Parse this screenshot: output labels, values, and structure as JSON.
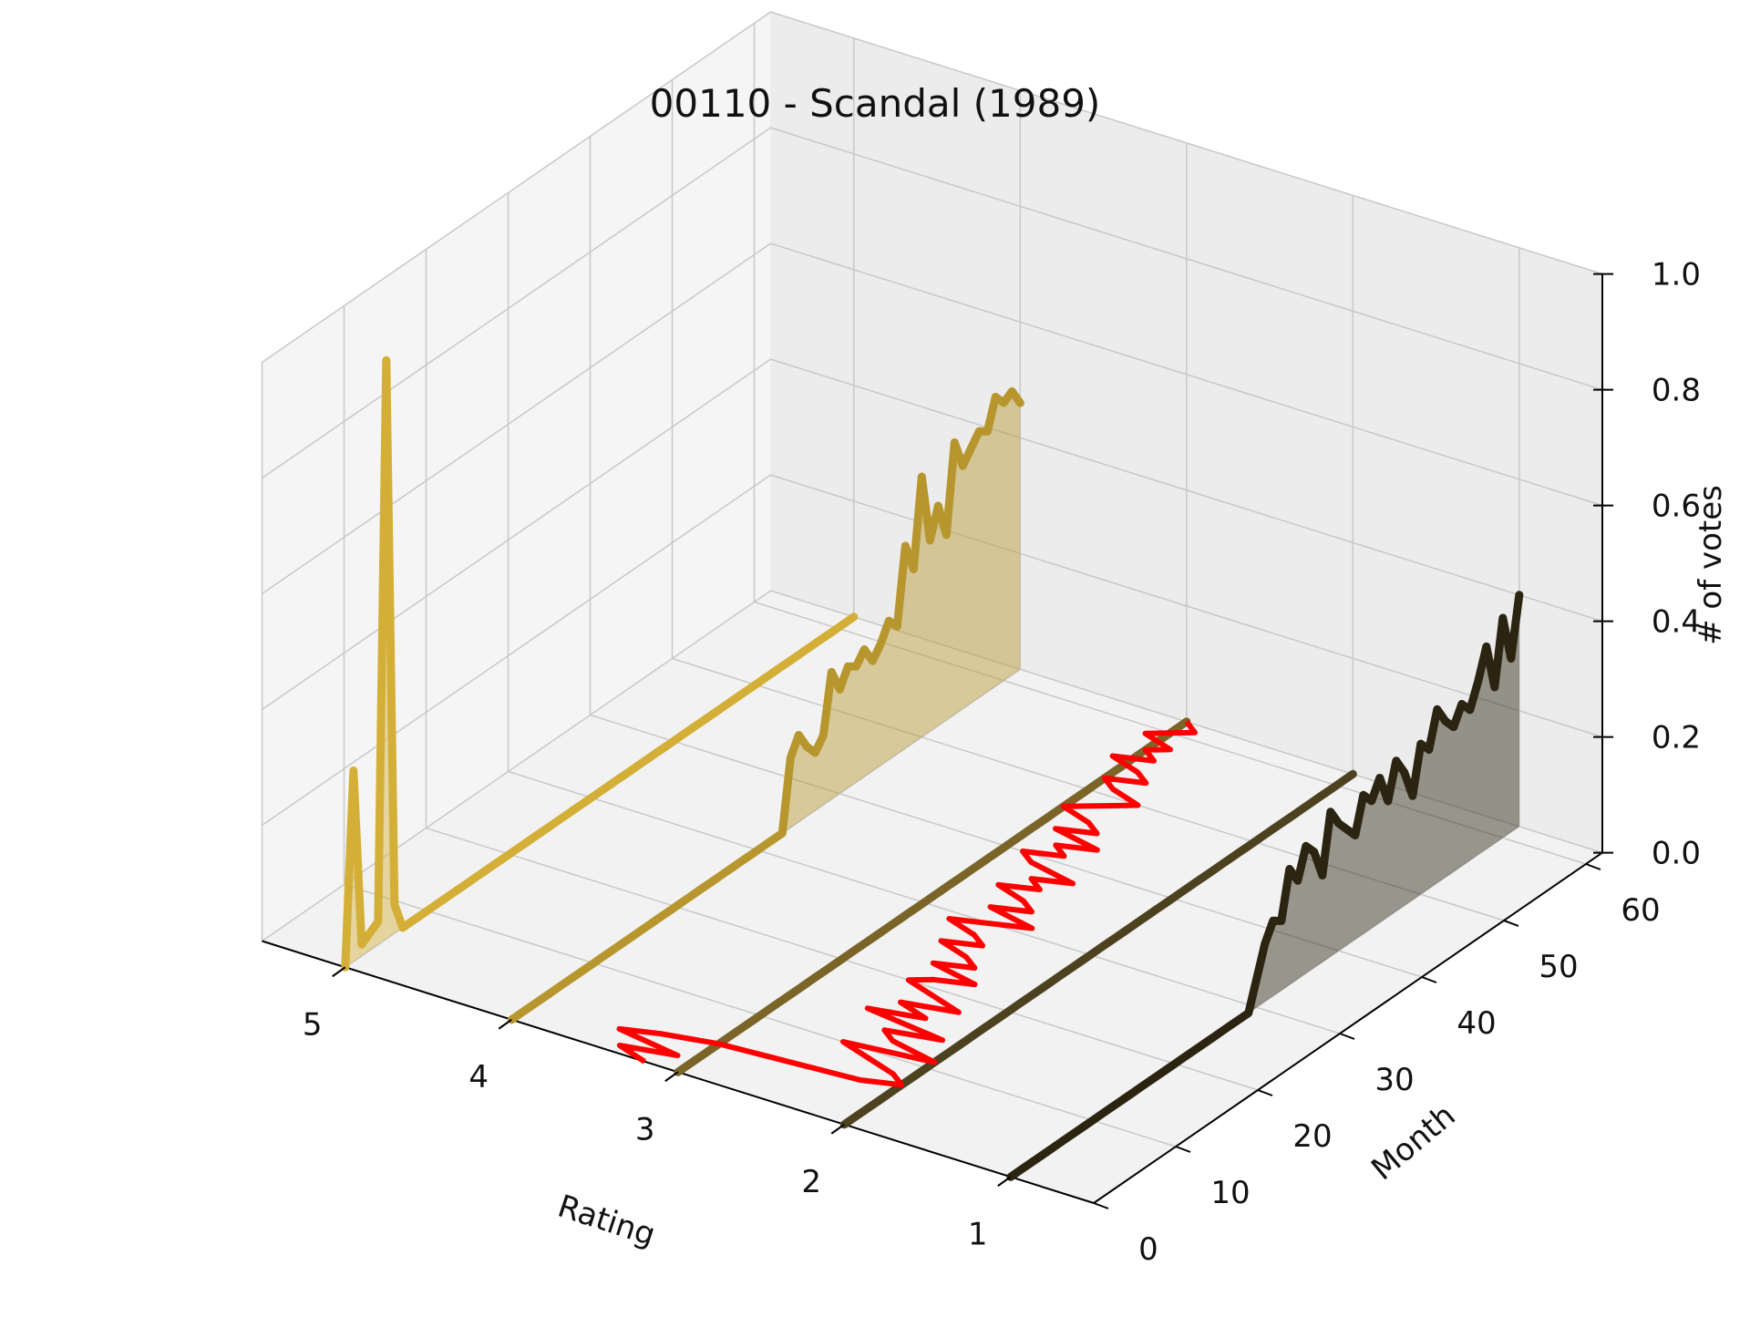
{
  "chart_data": {
    "type": "line",
    "projection": "3d",
    "title": "00110 - Scandal (1989)",
    "xlabel": "Rating",
    "ylabel": "Month",
    "zlabel": "# of votes",
    "x_ticks": [
      "5",
      "4",
      "3",
      "2",
      "1"
    ],
    "y_ticks": [
      "0",
      "10",
      "20",
      "30",
      "40",
      "50",
      "60"
    ],
    "z_ticks": [
      "0.0",
      "0.2",
      "0.4",
      "0.6",
      "0.8",
      "1.0"
    ],
    "xlim": [
      0.5,
      5.5
    ],
    "ylim": [
      0,
      62
    ],
    "zlim": [
      0,
      1
    ],
    "grid": true,
    "series": [
      {
        "rating": 5,
        "color": "#d4af37",
        "months": [
          0,
          1,
          2,
          3,
          4,
          5,
          6,
          7,
          8,
          9,
          10,
          11,
          12,
          13,
          14,
          15,
          16,
          17,
          18,
          19,
          20,
          21,
          22,
          23,
          24,
          25,
          26,
          27,
          28,
          29,
          30,
          31,
          32,
          33,
          34,
          35,
          36,
          37,
          38,
          39,
          40,
          41,
          42,
          43,
          44,
          45,
          46,
          47,
          48,
          49,
          50,
          51,
          52,
          53,
          54,
          55,
          56,
          57,
          58,
          59,
          60,
          61,
          62
        ],
        "values": [
          0.0,
          0.33,
          0.02,
          0.03,
          0.04,
          1.0,
          0.05,
          0.0,
          0.0,
          0.0,
          0.0,
          0.0,
          0.0,
          0.0,
          0.0,
          0.0,
          0.0,
          0.0,
          0.0,
          0.0,
          0.0,
          0.0,
          0.0,
          0.0,
          0.0,
          0.0,
          0.0,
          0.0,
          0.0,
          0.0,
          0.0,
          0.0,
          0.0,
          0.0,
          0.0,
          0.0,
          0.0,
          0.0,
          0.0,
          0.0,
          0.0,
          0.0,
          0.0,
          0.0,
          0.0,
          0.0,
          0.0,
          0.0,
          0.0,
          0.0,
          0.0,
          0.0,
          0.0,
          0.0,
          0.0,
          0.0,
          0.0,
          0.0,
          0.0,
          0.0,
          0.0,
          0.0,
          0.0
        ]
      },
      {
        "rating": 4,
        "color": "#b8962e",
        "months": [
          0,
          1,
          2,
          3,
          4,
          5,
          6,
          7,
          8,
          9,
          10,
          11,
          12,
          13,
          14,
          15,
          16,
          17,
          18,
          19,
          20,
          21,
          22,
          23,
          24,
          25,
          26,
          27,
          28,
          29,
          30,
          31,
          32,
          33,
          34,
          35,
          36,
          37,
          38,
          39,
          40,
          41,
          42,
          43,
          44,
          45,
          46,
          47,
          48,
          49,
          50,
          51,
          52,
          53,
          54,
          55,
          56,
          57,
          58,
          59,
          60,
          61,
          62
        ],
        "values": [
          0.0,
          0.0,
          0.0,
          0.0,
          0.0,
          0.0,
          0.0,
          0.0,
          0.0,
          0.0,
          0.0,
          0.0,
          0.0,
          0.0,
          0.0,
          0.0,
          0.0,
          0.0,
          0.0,
          0.0,
          0.0,
          0.0,
          0.0,
          0.0,
          0.0,
          0.0,
          0.0,
          0.0,
          0.0,
          0.0,
          0.0,
          0.0,
          0.0,
          0.0,
          0.12,
          0.15,
          0.12,
          0.1,
          0.12,
          0.22,
          0.18,
          0.21,
          0.2,
          0.22,
          0.19,
          0.21,
          0.24,
          0.22,
          0.35,
          0.3,
          0.45,
          0.33,
          0.38,
          0.32,
          0.47,
          0.42,
          0.44,
          0.46,
          0.45,
          0.5,
          0.48,
          0.49,
          0.46
        ]
      },
      {
        "rating": 3,
        "color": "#7a6428",
        "months": [
          0,
          1,
          2,
          3,
          4,
          5,
          6,
          7,
          8,
          9,
          10,
          11,
          12,
          13,
          14,
          15,
          16,
          17,
          18,
          19,
          20,
          21,
          22,
          23,
          24,
          25,
          26,
          27,
          28,
          29,
          30,
          31,
          32,
          33,
          34,
          35,
          36,
          37,
          38,
          39,
          40,
          41,
          42,
          43,
          44,
          45,
          46,
          47,
          48,
          49,
          50,
          51,
          52,
          53,
          54,
          55,
          56,
          57,
          58,
          59,
          60,
          61,
          62
        ],
        "values": [
          0.0,
          0.0,
          0.0,
          0.0,
          0.0,
          0.0,
          0.0,
          0.0,
          0.0,
          0.0,
          0.0,
          0.0,
          0.0,
          0.0,
          0.0,
          0.0,
          0.0,
          0.0,
          0.0,
          0.0,
          0.0,
          0.0,
          0.0,
          0.0,
          0.0,
          0.0,
          0.0,
          0.0,
          0.0,
          0.0,
          0.0,
          0.0,
          0.0,
          0.0,
          0.0,
          0.0,
          0.0,
          0.0,
          0.0,
          0.0,
          0.0,
          0.0,
          0.0,
          0.0,
          0.0,
          0.0,
          0.0,
          0.0,
          0.0,
          0.0,
          0.0,
          0.0,
          0.0,
          0.0,
          0.0,
          0.0,
          0.0,
          0.0,
          0.0,
          0.0,
          0.0,
          0.0,
          0.0
        ]
      },
      {
        "rating": 2,
        "color": "#4d4220",
        "months": [
          0,
          1,
          2,
          3,
          4,
          5,
          6,
          7,
          8,
          9,
          10,
          11,
          12,
          13,
          14,
          15,
          16,
          17,
          18,
          19,
          20,
          21,
          22,
          23,
          24,
          25,
          26,
          27,
          28,
          29,
          30,
          31,
          32,
          33,
          34,
          35,
          36,
          37,
          38,
          39,
          40,
          41,
          42,
          43,
          44,
          45,
          46,
          47,
          48,
          49,
          50,
          51,
          52,
          53,
          54,
          55,
          56,
          57,
          58,
          59,
          60,
          61,
          62
        ],
        "values": [
          0.0,
          0.0,
          0.0,
          0.0,
          0.0,
          0.0,
          0.0,
          0.0,
          0.0,
          0.0,
          0.0,
          0.0,
          0.0,
          0.0,
          0.0,
          0.0,
          0.0,
          0.0,
          0.0,
          0.0,
          0.0,
          0.0,
          0.0,
          0.0,
          0.0,
          0.0,
          0.0,
          0.0,
          0.0,
          0.0,
          0.0,
          0.0,
          0.0,
          0.0,
          0.0,
          0.0,
          0.0,
          0.0,
          0.0,
          0.0,
          0.0,
          0.0,
          0.0,
          0.0,
          0.0,
          0.0,
          0.0,
          0.0,
          0.0,
          0.0,
          0.0,
          0.0,
          0.0,
          0.0,
          0.0,
          0.0,
          0.0,
          0.0,
          0.0,
          0.0,
          0.0,
          0.0,
          0.0
        ]
      },
      {
        "rating": 1,
        "color": "#2a2410",
        "months": [
          0,
          1,
          2,
          3,
          4,
          5,
          6,
          7,
          8,
          9,
          10,
          11,
          12,
          13,
          14,
          15,
          16,
          17,
          18,
          19,
          20,
          21,
          22,
          23,
          24,
          25,
          26,
          27,
          28,
          29,
          30,
          31,
          32,
          33,
          34,
          35,
          36,
          37,
          38,
          39,
          40,
          41,
          42,
          43,
          44,
          45,
          46,
          47,
          48,
          49,
          50,
          51,
          52,
          53,
          54,
          55,
          56,
          57,
          58,
          59,
          60,
          61,
          62
        ],
        "values": [
          0.0,
          0.0,
          0.0,
          0.0,
          0.0,
          0.0,
          0.0,
          0.0,
          0.0,
          0.0,
          0.0,
          0.0,
          0.0,
          0.0,
          0.0,
          0.0,
          0.0,
          0.0,
          0.0,
          0.0,
          0.0,
          0.0,
          0.0,
          0.0,
          0.0,
          0.0,
          0.0,
          0.0,
          0.0,
          0.0,
          0.05,
          0.1,
          0.13,
          0.12,
          0.2,
          0.17,
          0.22,
          0.2,
          0.15,
          0.25,
          0.22,
          0.2,
          0.18,
          0.24,
          0.22,
          0.25,
          0.2,
          0.26,
          0.23,
          0.18,
          0.26,
          0.24,
          0.3,
          0.27,
          0.25,
          0.28,
          0.26,
          0.3,
          0.35,
          0.27,
          0.38,
          0.3,
          0.4
        ]
      },
      {
        "rating": "mean",
        "color": "#ff0000",
        "months": [
          0,
          1,
          2,
          3,
          4,
          5,
          6,
          7,
          8,
          9,
          10,
          11,
          12,
          13,
          14,
          15,
          16,
          17,
          18,
          19,
          20,
          21,
          22,
          23,
          24,
          25,
          26,
          27,
          28,
          29,
          30,
          31,
          32,
          33,
          34,
          35,
          36,
          37,
          38,
          39,
          40,
          41,
          42,
          43,
          44,
          45,
          46,
          47,
          48,
          49,
          50,
          51,
          52,
          53,
          54,
          55,
          56,
          57,
          58,
          59,
          60,
          61,
          62
        ],
        "values": [
          3.2,
          3.4,
          3.1,
          3.5,
          3.3,
          3.0,
          2.2,
          2.0,
          2.1,
          2.3,
          2.5,
          2.0,
          2.3,
          2.4,
          2.1,
          2.6,
          2.3,
          2.5,
          2.2,
          2.4,
          2.6,
          2.5,
          2.3,
          2.6,
          2.4,
          2.5,
          2.7,
          2.5,
          2.6,
          2.8,
          2.6,
          2.4,
          2.7,
          2.5,
          2.6,
          2.8,
          2.6,
          2.7,
          2.5,
          2.8,
          2.9,
          2.7,
          2.8,
          2.6,
          2.9,
          2.7,
          2.8,
          3.0,
          2.9,
          2.8,
          2.7,
          2.9,
          3.0,
          2.8,
          2.9,
          3.1,
          2.9,
          3.0,
          2.9,
          3.1,
          3.0,
          2.9,
          3.0
        ]
      }
    ]
  }
}
